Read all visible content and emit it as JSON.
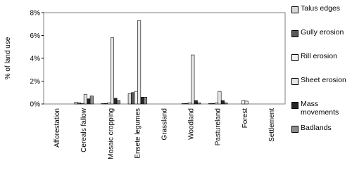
{
  "chart_data": {
    "type": "bar",
    "y_label": "% of land use",
    "categories": [
      "Afforestation",
      "Cereals fallow",
      "Mosaic cropping",
      "Ensete legumes",
      "Grassland",
      "Woodland",
      "Pastureland",
      "Forest",
      "Settlement"
    ],
    "series": [
      {
        "name": "Talus edges",
        "color": "#d9d9d9",
        "values": [
          0,
          0.15,
          0.05,
          0.9,
          0,
          0.05,
          0.05,
          0,
          0
        ]
      },
      {
        "name": "Gully erosion",
        "color": "#595959",
        "values": [
          0,
          0.1,
          0.05,
          1.0,
          0,
          0.05,
          0.05,
          0,
          0
        ]
      },
      {
        "name": "Rill erosion",
        "color": "#f2f2f2",
        "values": [
          0,
          0.05,
          0.1,
          1.1,
          0,
          0.1,
          0.1,
          0.3,
          0
        ]
      },
      {
        "name": "Sheet erosion",
        "color": "#e6e6e6",
        "values": [
          0,
          0.85,
          5.8,
          7.3,
          0,
          4.3,
          1.1,
          0.25,
          0
        ]
      },
      {
        "name": "Mass movements",
        "color": "#262626",
        "values": [
          0,
          0.45,
          0.5,
          0.6,
          0,
          0.3,
          0.3,
          0,
          0
        ]
      },
      {
        "name": "Badlands",
        "color": "#8c8c8c",
        "values": [
          0,
          0.7,
          0.3,
          0.6,
          0,
          0.1,
          0.1,
          0,
          0
        ]
      }
    ],
    "ylim": [
      0,
      8
    ],
    "yticks": [
      {
        "value": 0,
        "label": "0%"
      },
      {
        "value": 2,
        "label": "2%"
      },
      {
        "value": 4,
        "label": "4%"
      },
      {
        "value": 6,
        "label": "6%"
      },
      {
        "value": 8,
        "label": "8%"
      }
    ],
    "grid": false
  }
}
